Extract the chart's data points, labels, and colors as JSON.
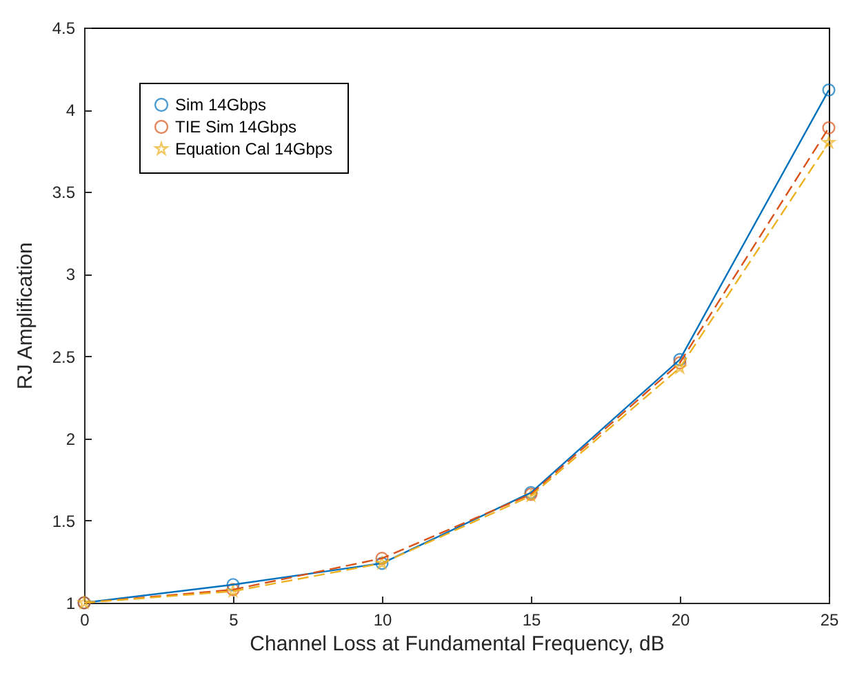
{
  "chart_data": {
    "type": "line",
    "xlabel": "Channel Loss at Fundamental Frequency, dB",
    "ylabel": "RJ Amplification",
    "x": [
      0,
      5,
      10,
      15,
      20,
      25
    ],
    "series": [
      {
        "name": "Sim 14Gbps",
        "color": "#0072bd",
        "values": [
          1,
          1.11,
          1.24,
          1.67,
          2.48,
          4.12
        ],
        "marker": "circle",
        "line_style": "solid"
      },
      {
        "name": "TIE  Sim 14Gbps",
        "color": "#d95319",
        "values": [
          1,
          1.08,
          1.27,
          1.66,
          2.46,
          3.89
        ],
        "marker": "circle",
        "line_style": "dashed"
      },
      {
        "name": "Equation Cal 14Gbps",
        "color": "#edb120",
        "values": [
          1,
          1.07,
          1.24,
          1.65,
          2.43,
          3.8
        ],
        "marker": "star",
        "line_style": "dashed"
      }
    ],
    "xlim": [
      0,
      25
    ],
    "xticks": [
      0,
      5,
      10,
      15,
      20,
      25
    ],
    "ylim": [
      1,
      4.5
    ],
    "yticks": [
      1,
      1.5,
      2,
      2.5,
      3,
      3.5,
      4,
      4.5
    ],
    "grid": false,
    "legend": "top left"
  }
}
